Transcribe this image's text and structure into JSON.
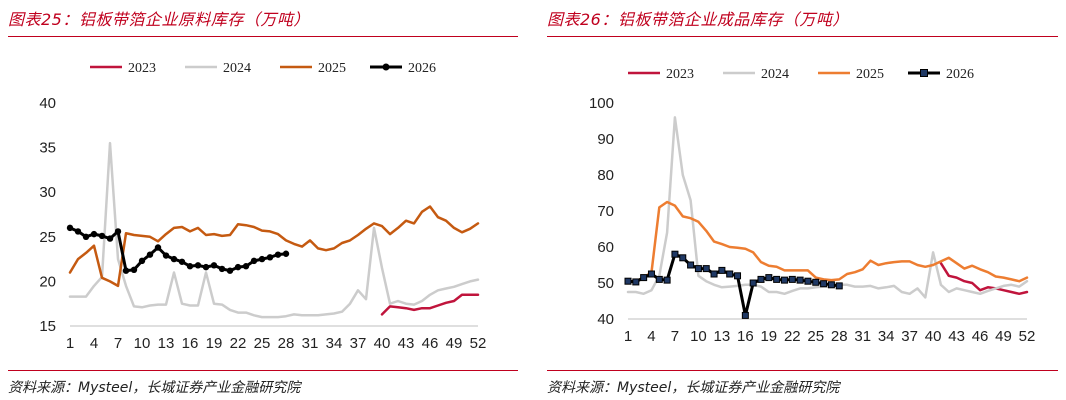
{
  "source_text": "资料来源：Mysteel，长城证券产业金融研究院",
  "charts": [
    {
      "title": "图表25：铝板带箔企业原料库存（万吨）",
      "source": "资料来源：Mysteel，长城证券产业金融研究院",
      "chart_data": {
        "type": "line",
        "title": "图表25：铝板带箔企业原料库存（万吨）",
        "xlabel": "",
        "ylabel": "",
        "unit": "万吨",
        "x_range": [
          1,
          52
        ],
        "x_ticks": [
          "1",
          "4",
          "7",
          "10",
          "13",
          "16",
          "19",
          "22",
          "25",
          "28",
          "31",
          "34",
          "37",
          "40",
          "43",
          "46",
          "49",
          "52"
        ],
        "ylim": [
          15,
          40
        ],
        "y_ticks": [
          "15",
          "20",
          "25",
          "30",
          "35",
          "40"
        ],
        "legend_position": "top",
        "grid": false,
        "series": [
          {
            "name": "2023",
            "color": "#c0143c",
            "marker": "none",
            "x": [
              40,
              41,
              42,
              43,
              44,
              45,
              46,
              47,
              48,
              49,
              50,
              51,
              52
            ],
            "y": [
              16.3,
              17.2,
              17.1,
              17.0,
              16.8,
              17.0,
              17.0,
              17.3,
              17.6,
              17.8,
              18.5,
              18.5,
              18.5
            ]
          },
          {
            "name": "2024",
            "color": "#cccccc",
            "marker": "none",
            "x": [
              1,
              2,
              3,
              4,
              5,
              6,
              7,
              8,
              9,
              10,
              11,
              12,
              13,
              14,
              15,
              16,
              17,
              18,
              19,
              20,
              21,
              22,
              23,
              24,
              25,
              26,
              27,
              28,
              29,
              30,
              31,
              32,
              33,
              34,
              35,
              36,
              37,
              38,
              39,
              40,
              41,
              42,
              43,
              44,
              45,
              46,
              47,
              48,
              49,
              50,
              51,
              52
            ],
            "y": [
              18.3,
              18.3,
              18.3,
              19.5,
              20.5,
              35.5,
              22.5,
              19.5,
              17.2,
              17.1,
              17.3,
              17.4,
              17.4,
              21.0,
              17.5,
              17.3,
              17.3,
              21.0,
              17.5,
              17.4,
              16.8,
              16.5,
              16.5,
              16.2,
              16.0,
              16.0,
              16.0,
              16.1,
              16.3,
              16.2,
              16.2,
              16.2,
              16.3,
              16.4,
              16.6,
              17.5,
              19.0,
              18.0,
              26.0,
              21.5,
              17.5,
              17.8,
              17.5,
              17.4,
              17.8,
              18.5,
              19.0,
              19.2,
              19.4,
              19.7,
              20.0,
              20.2
            ]
          },
          {
            "name": "2025",
            "color": "#c55a11",
            "marker": "none",
            "x": [
              1,
              2,
              3,
              4,
              5,
              6,
              7,
              8,
              9,
              10,
              11,
              12,
              13,
              14,
              15,
              16,
              17,
              18,
              19,
              20,
              21,
              22,
              23,
              24,
              25,
              26,
              27,
              28,
              29,
              30,
              31,
              32,
              33,
              34,
              35,
              36,
              37,
              38,
              39,
              40,
              41,
              42,
              43,
              44,
              45,
              46,
              47,
              48,
              49,
              50,
              51,
              52
            ],
            "y": [
              21.0,
              22.5,
              23.2,
              24.0,
              20.4,
              20.0,
              19.5,
              25.4,
              25.2,
              25.1,
              25.0,
              24.5,
              25.3,
              26.0,
              26.1,
              25.6,
              26.0,
              25.2,
              25.3,
              25.1,
              25.2,
              26.4,
              26.3,
              26.1,
              25.7,
              25.6,
              25.3,
              24.6,
              24.2,
              23.9,
              24.6,
              23.7,
              23.5,
              23.7,
              24.3,
              24.6,
              25.2,
              25.9,
              26.5,
              26.2,
              25.3,
              26.0,
              26.8,
              26.5,
              27.8,
              28.4,
              27.2,
              26.8,
              26.0,
              25.5,
              25.9,
              26.5
            ]
          },
          {
            "name": "2026",
            "color": "#000000",
            "marker": "circle",
            "x": [
              1,
              2,
              3,
              4,
              5,
              6,
              7,
              8,
              9,
              10,
              11,
              12,
              13,
              14,
              15,
              16,
              17,
              18,
              19,
              20,
              21,
              22,
              23,
              24,
              25,
              26,
              27,
              28
            ],
            "y": [
              26.0,
              25.6,
              25.0,
              25.3,
              25.1,
              24.8,
              25.6,
              21.2,
              21.3,
              22.3,
              23.0,
              23.8,
              22.9,
              22.5,
              22.2,
              21.7,
              21.8,
              21.6,
              21.8,
              21.4,
              21.2,
              21.6,
              21.7,
              22.3,
              22.5,
              22.7,
              23.0,
              23.1
            ]
          }
        ]
      }
    },
    {
      "title": "图表26：铝板带箔企业成品库存（万吨）",
      "source": "资料来源：Mysteel，长城证券产业金融研究院",
      "chart_data": {
        "type": "line",
        "title": "图表26：铝板带箔企业成品库存（万吨）",
        "xlabel": "",
        "ylabel": "",
        "unit": "万吨",
        "x_range": [
          1,
          52
        ],
        "x_ticks": [
          "1",
          "4",
          "7",
          "10",
          "13",
          "16",
          "19",
          "22",
          "25",
          "28",
          "31",
          "34",
          "37",
          "40",
          "43",
          "46",
          "49",
          "52"
        ],
        "ylim": [
          40,
          100
        ],
        "y_ticks": [
          "40",
          "50",
          "60",
          "70",
          "80",
          "90",
          "100"
        ],
        "legend_position": "top",
        "grid": false,
        "series": [
          {
            "name": "2023",
            "color": "#c0143c",
            "marker": "none",
            "x": [
              41,
              42,
              43,
              44,
              45,
              46,
              47,
              48,
              49,
              50,
              51,
              52
            ],
            "y": [
              55.5,
              52.0,
              51.5,
              50.5,
              50.0,
              48.0,
              48.8,
              48.5,
              48.0,
              47.5,
              47.0,
              47.5
            ]
          },
          {
            "name": "2024",
            "color": "#cccccc",
            "marker": "none",
            "x": [
              1,
              2,
              3,
              4,
              5,
              6,
              7,
              8,
              9,
              10,
              11,
              12,
              13,
              14,
              15,
              16,
              17,
              18,
              19,
              20,
              21,
              22,
              23,
              24,
              25,
              26,
              27,
              28,
              29,
              30,
              31,
              32,
              33,
              34,
              35,
              36,
              37,
              38,
              39,
              40,
              41,
              42,
              43,
              44,
              45,
              46,
              47,
              48,
              49,
              50,
              51,
              52
            ],
            "y": [
              47.5,
              47.5,
              47.0,
              48.0,
              52.0,
              64.0,
              96.0,
              80.0,
              73.0,
              52.0,
              50.5,
              49.5,
              48.8,
              49.0,
              49.2,
              49.5,
              49.5,
              49.0,
              47.5,
              47.5,
              47.0,
              47.8,
              48.5,
              48.5,
              48.8,
              49.0,
              49.0,
              49.5,
              49.5,
              49.0,
              49.0,
              49.2,
              48.5,
              48.8,
              49.2,
              47.5,
              47.0,
              48.5,
              46.0,
              58.5,
              49.5,
              47.5,
              48.5,
              48.0,
              47.5,
              47.0,
              47.8,
              48.5,
              49.2,
              49.5,
              49.0,
              50.5
            ]
          },
          {
            "name": "2025",
            "color": "#ed7d31",
            "marker": "none",
            "x": [
              1,
              2,
              3,
              4,
              5,
              6,
              7,
              8,
              9,
              10,
              11,
              12,
              13,
              14,
              15,
              16,
              17,
              18,
              19,
              20,
              21,
              22,
              23,
              24,
              25,
              26,
              27,
              28,
              29,
              30,
              31,
              32,
              33,
              34,
              35,
              36,
              37,
              38,
              39,
              40,
              41,
              42,
              43,
              44,
              45,
              46,
              47,
              48,
              49,
              50,
              51,
              52
            ],
            "y": [
              50.5,
              50.5,
              51.5,
              53.0,
              71.0,
              72.5,
              71.5,
              68.5,
              68.0,
              67.0,
              64.5,
              61.5,
              60.8,
              60.0,
              59.8,
              59.5,
              58.5,
              55.8,
              54.8,
              54.5,
              53.5,
              53.5,
              53.5,
              53.5,
              51.5,
              51.0,
              50.8,
              51.0,
              52.5,
              53.0,
              53.8,
              56.2,
              55.0,
              55.5,
              55.8,
              56.0,
              56.0,
              55.0,
              54.5,
              55.0,
              56.0,
              57.0,
              55.5,
              54.0,
              54.8,
              53.8,
              53.0,
              51.8,
              51.5,
              51.0,
              50.5,
              51.5
            ]
          },
          {
            "name": "2026",
            "color": "#000000",
            "marker": "square",
            "x": [
              1,
              2,
              3,
              4,
              5,
              6,
              7,
              8,
              9,
              10,
              11,
              12,
              13,
              14,
              15,
              16,
              17,
              18,
              19,
              20,
              21,
              22,
              23,
              24,
              25,
              26,
              27,
              28
            ],
            "y": [
              50.5,
              50.3,
              51.5,
              52.5,
              51.0,
              50.8,
              58.0,
              57.0,
              55.0,
              54.0,
              54.0,
              52.5,
              53.5,
              52.5,
              52.0,
              41.0,
              50.0,
              51.0,
              51.5,
              51.0,
              50.8,
              51.0,
              50.8,
              50.5,
              50.2,
              49.8,
              49.5,
              49.2
            ]
          }
        ]
      }
    }
  ]
}
